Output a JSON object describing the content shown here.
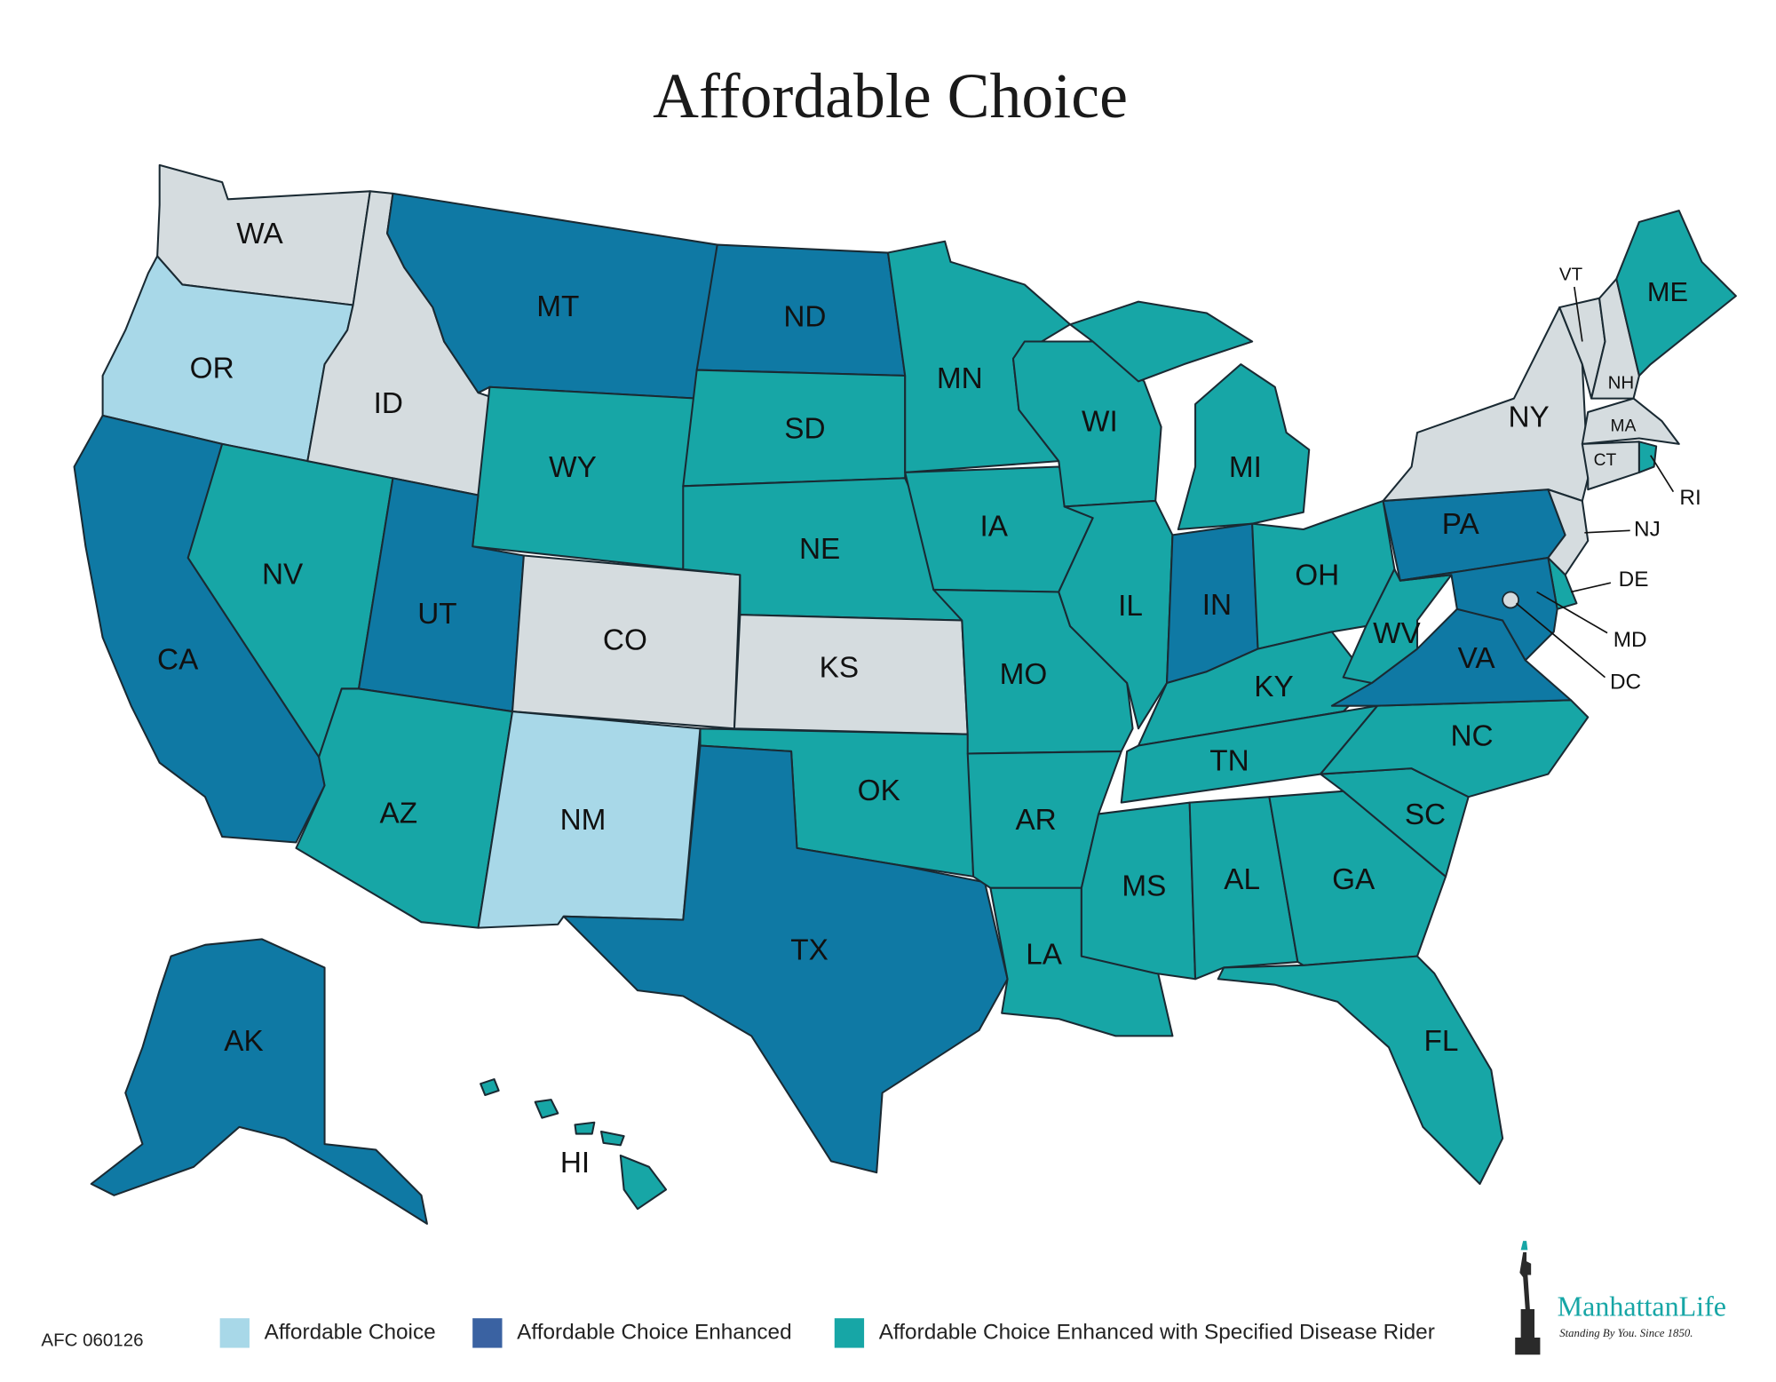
{
  "title": "Affordable Choice",
  "legend": [
    {
      "label": "Affordable Choice",
      "color": "#a8d8e8"
    },
    {
      "label": "Affordable Choice Enhanced",
      "color": "#3a62a2"
    },
    {
      "label": "Affordable Choice Enhanced with Specified Disease Rider",
      "color": "#17a6a6"
    }
  ],
  "states": [
    {
      "label": "WA",
      "color": "#d5dcdf"
    },
    {
      "label": "OR",
      "color": "#a8d8e8"
    },
    {
      "label": "CA",
      "color": "#0f79a4"
    },
    {
      "label": "NV",
      "color": "#17a6a6"
    },
    {
      "label": "ID",
      "color": "#d5dcdf"
    },
    {
      "label": "MT",
      "color": "#0f79a4"
    },
    {
      "label": "WY",
      "color": "#17a6a6"
    },
    {
      "label": "UT",
      "color": "#0f79a4"
    },
    {
      "label": "CO",
      "color": "#d5dcdf"
    },
    {
      "label": "AZ",
      "color": "#17a6a6"
    },
    {
      "label": "NM",
      "color": "#a8d8e8"
    },
    {
      "label": "ND",
      "color": "#0f79a4"
    },
    {
      "label": "SD",
      "color": "#17a6a6"
    },
    {
      "label": "NE",
      "color": "#17a6a6"
    },
    {
      "label": "KS",
      "color": "#d5dcdf"
    },
    {
      "label": "OK",
      "color": "#17a6a6"
    },
    {
      "label": "TX",
      "color": "#0f79a4"
    },
    {
      "label": "MN",
      "color": "#17a6a6"
    },
    {
      "label": "IA",
      "color": "#17a6a6"
    },
    {
      "label": "MO",
      "color": "#17a6a6"
    },
    {
      "label": "AR",
      "color": "#17a6a6"
    },
    {
      "label": "LA",
      "color": "#17a6a6"
    },
    {
      "label": "WI",
      "color": "#17a6a6"
    },
    {
      "label": "IL",
      "color": "#17a6a6"
    },
    {
      "label": "MI",
      "color": "#17a6a6"
    },
    {
      "label": "IN",
      "color": "#0f79a4"
    },
    {
      "label": "OH",
      "color": "#17a6a6"
    },
    {
      "label": "KY",
      "color": "#17a6a6"
    },
    {
      "label": "TN",
      "color": "#17a6a6"
    },
    {
      "label": "MS",
      "color": "#17a6a6"
    },
    {
      "label": "AL",
      "color": "#17a6a6"
    },
    {
      "label": "GA",
      "color": "#17a6a6"
    },
    {
      "label": "FL",
      "color": "#17a6a6"
    },
    {
      "label": "SC",
      "color": "#17a6a6"
    },
    {
      "label": "NC",
      "color": "#17a6a6"
    },
    {
      "label": "VA",
      "color": "#0f79a4"
    },
    {
      "label": "WV",
      "color": "#17a6a6"
    },
    {
      "label": "PA",
      "color": "#0f79a4"
    },
    {
      "label": "NY",
      "color": "#d5dcdf"
    },
    {
      "label": "NJ",
      "color": "#d5dcdf"
    },
    {
      "label": "DE",
      "color": "#17a6a6"
    },
    {
      "label": "MD",
      "color": "#0f79a4"
    },
    {
      "label": "DC",
      "color": "#d5dcdf"
    },
    {
      "label": "VT",
      "color": "#d5dcdf"
    },
    {
      "label": "NH",
      "color": "#d5dcdf"
    },
    {
      "label": "ME",
      "color": "#17a6a6"
    },
    {
      "label": "MA",
      "color": "#d5dcdf"
    },
    {
      "label": "CT",
      "color": "#d5dcdf"
    },
    {
      "label": "RI",
      "color": "#17a6a6"
    },
    {
      "label": "AK",
      "color": "#0f79a4"
    },
    {
      "label": "HI",
      "color": "#17a6a6"
    }
  ],
  "footer_code": "AFC 060126",
  "logo": {
    "name": "ManhattanLife",
    "tagline": "Standing By You. Since 1850."
  }
}
